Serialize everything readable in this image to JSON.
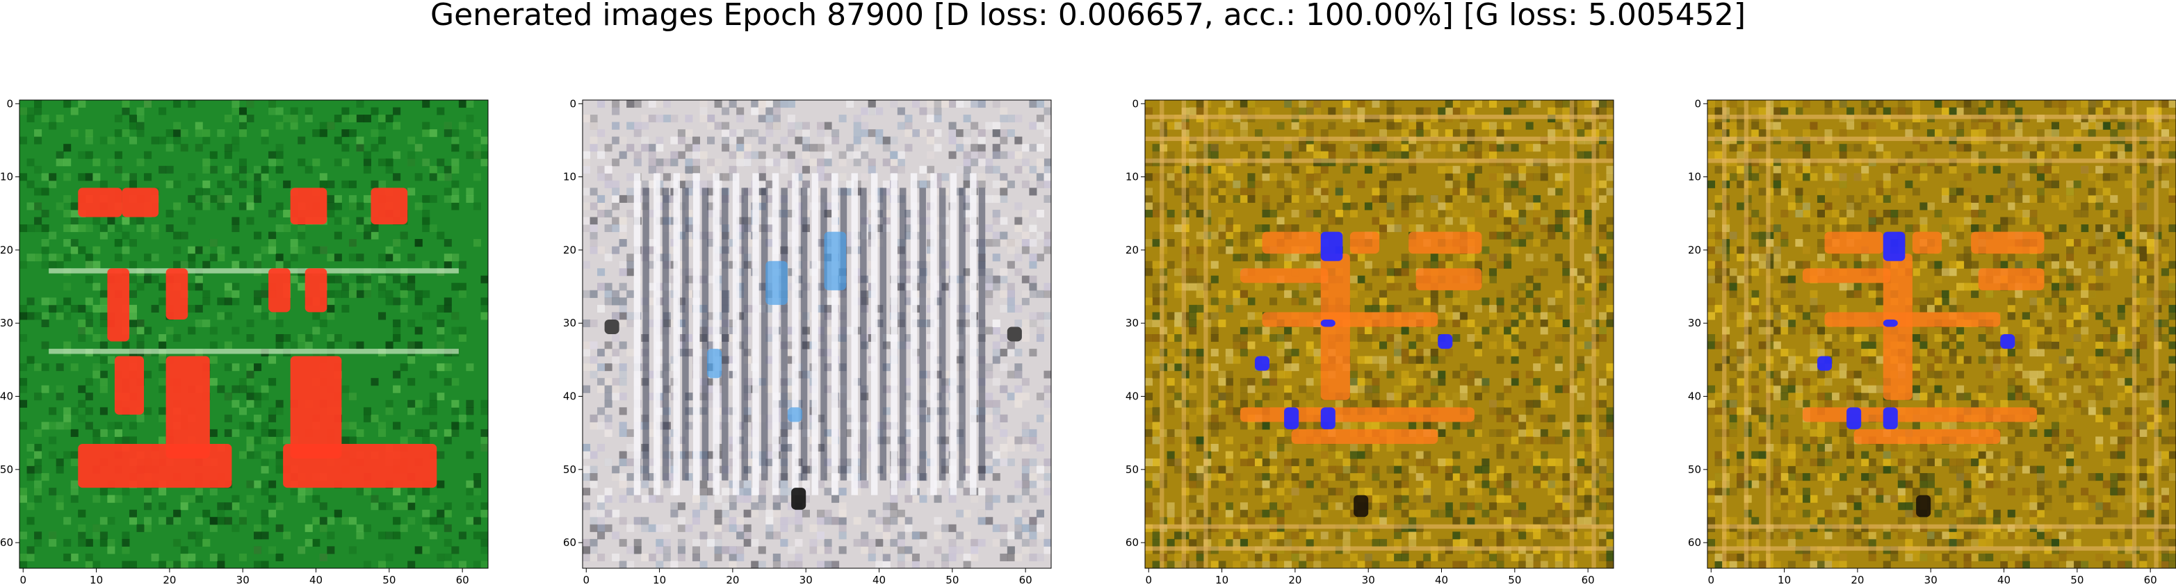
{
  "figure": {
    "suptitle": "Generated images Epoch 87900 [D loss: 0.006657, acc.: 100.00%] [G loss: 5.005452]"
  },
  "chart_data": [
    {
      "type": "heatmap",
      "panel": 1,
      "description_colors": {
        "background": "#1f8a2a",
        "foreground": "#ff3b22"
      },
      "xlim": [
        0,
        63
      ],
      "ylim": [
        63,
        0
      ],
      "x_ticks": [
        0,
        10,
        20,
        30,
        40,
        50,
        60
      ],
      "y_ticks": [
        0,
        10,
        20,
        30,
        40,
        50,
        60
      ]
    },
    {
      "type": "heatmap",
      "panel": 2,
      "description_colors": {
        "background": "#d9d4d6",
        "foreground": "#3a4a7a"
      },
      "xlim": [
        0,
        63
      ],
      "ylim": [
        63,
        0
      ],
      "x_ticks": [
        0,
        10,
        20,
        30,
        40,
        50,
        60
      ],
      "y_ticks": [
        0,
        10,
        20,
        30,
        40,
        50,
        60
      ]
    },
    {
      "type": "heatmap",
      "panel": 3,
      "description_colors": {
        "background": "#a8860f",
        "foreground": "#ff7a1a",
        "accent": "#2a2aff"
      },
      "xlim": [
        0,
        63
      ],
      "ylim": [
        63,
        0
      ],
      "x_ticks": [
        0,
        10,
        20,
        30,
        40,
        50,
        60
      ],
      "y_ticks": [
        0,
        10,
        20,
        30,
        40,
        50,
        60
      ]
    },
    {
      "type": "heatmap",
      "panel": 4,
      "description_colors": {
        "background": "#a8860f",
        "foreground": "#ff7a1a",
        "accent": "#2a2aff"
      },
      "xlim": [
        0,
        63
      ],
      "ylim": [
        63,
        0
      ],
      "x_ticks": [
        0,
        10,
        20,
        30,
        40,
        50,
        60
      ],
      "y_ticks": [
        0,
        10,
        20,
        30,
        40,
        50,
        60
      ]
    }
  ]
}
